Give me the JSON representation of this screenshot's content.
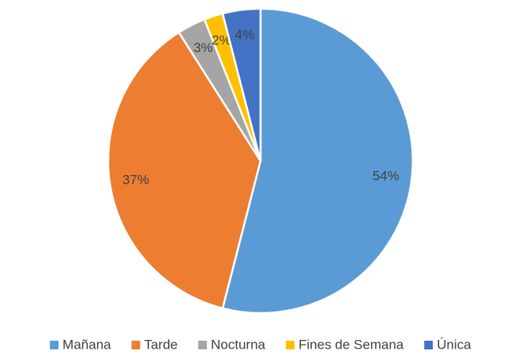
{
  "chart_data": {
    "type": "pie",
    "categories": [
      "Mañana",
      "Tarde",
      "Nocturna",
      "Fines de Semana",
      "Única"
    ],
    "values": [
      54,
      37,
      3,
      2,
      4
    ],
    "value_labels": [
      "54%",
      "37%",
      "3%",
      "2%",
      "4%"
    ],
    "colors": [
      "#5b9bd5",
      "#ed7d31",
      "#a5a5a5",
      "#ffc000",
      "#4472c4"
    ],
    "legend": "bottom"
  }
}
